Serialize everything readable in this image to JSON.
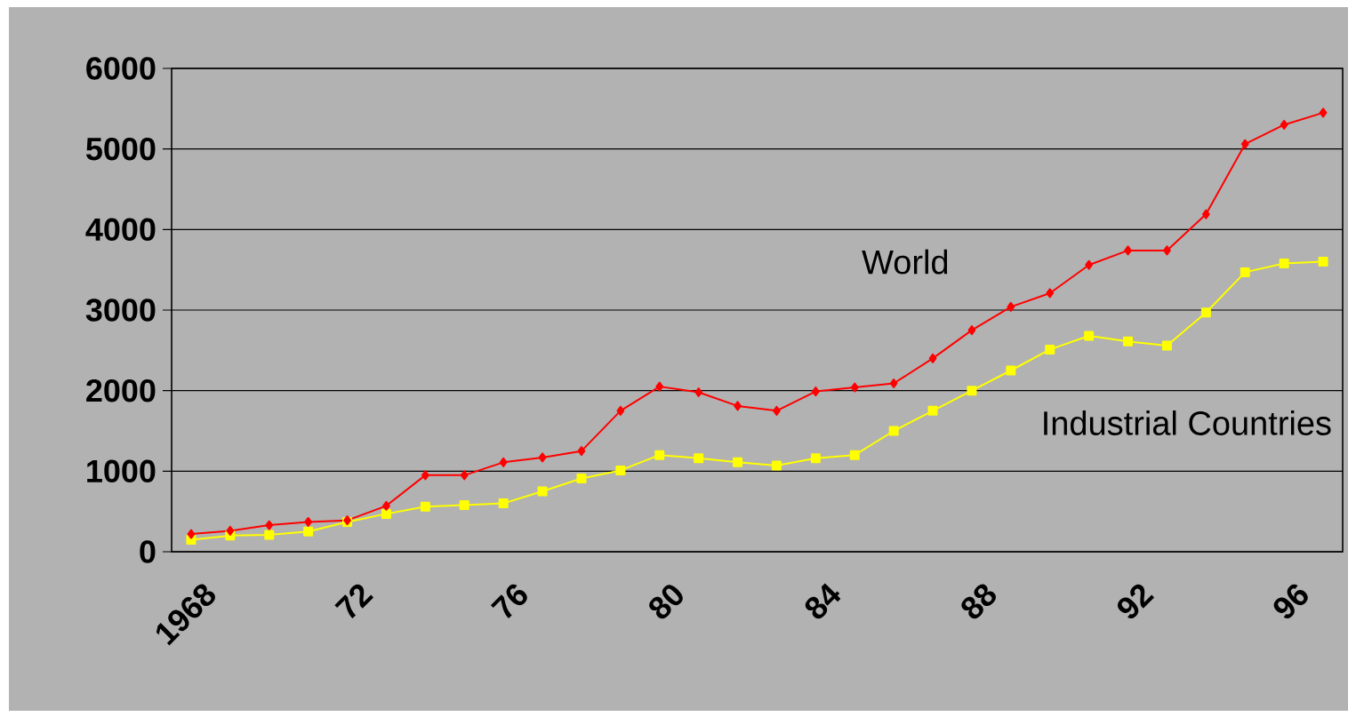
{
  "chart_data": {
    "type": "line",
    "categories": [
      "1968",
      null,
      null,
      null,
      "72",
      null,
      null,
      null,
      "76",
      null,
      null,
      null,
      "80",
      null,
      null,
      null,
      "84",
      null,
      null,
      null,
      "88",
      null,
      null,
      null,
      "92",
      null,
      null,
      null,
      "96",
      null
    ],
    "series": [
      {
        "name": "World",
        "color": "#ff0000",
        "marker": "diamond",
        "values": [
          220,
          260,
          330,
          370,
          390,
          570,
          950,
          950,
          1110,
          1170,
          1250,
          1750,
          2050,
          1980,
          1810,
          1750,
          1990,
          2040,
          2090,
          2400,
          2750,
          3040,
          3210,
          3560,
          3740,
          3740,
          4190,
          5060,
          5300,
          5450
        ]
      },
      {
        "name": "Industrial Countries",
        "color": "#ffff00",
        "marker": "square",
        "values": [
          150,
          200,
          210,
          250,
          370,
          470,
          560,
          580,
          600,
          750,
          910,
          1010,
          1200,
          1160,
          1110,
          1070,
          1160,
          1200,
          1500,
          1750,
          2000,
          2250,
          2510,
          2680,
          2610,
          2560,
          2970,
          3470,
          3580,
          3600
        ]
      }
    ],
    "ylim": [
      0,
      6000
    ],
    "yticks": [
      0,
      1000,
      2000,
      3000,
      4000,
      5000,
      6000
    ],
    "grid": "y",
    "line_style": "solid"
  }
}
